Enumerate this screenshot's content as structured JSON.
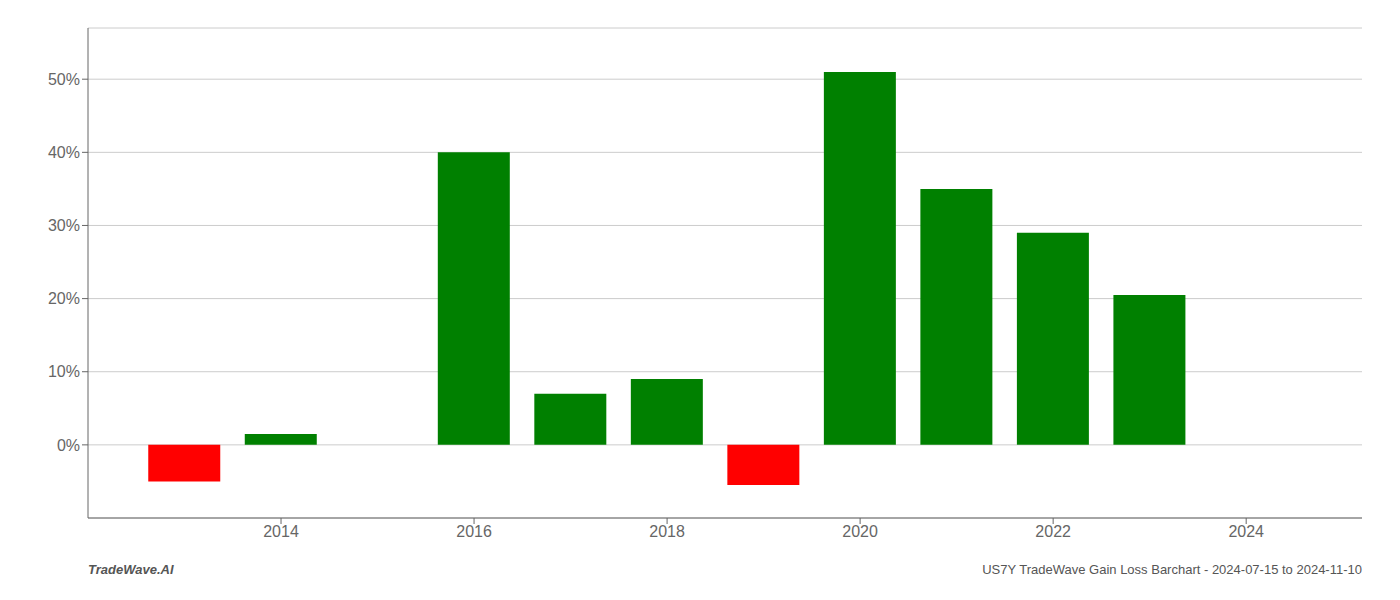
{
  "chart_data": {
    "type": "bar",
    "x": [
      2013,
      2014,
      2016,
      2017,
      2018,
      2019,
      2020,
      2021,
      2022,
      2023
    ],
    "values": [
      -5.0,
      1.5,
      40.0,
      7.0,
      9.0,
      -5.5,
      51.0,
      35.0,
      29.0,
      20.5
    ],
    "colors": [
      "#ff0000",
      "#008000",
      "#008000",
      "#008000",
      "#008000",
      "#ff0000",
      "#008000",
      "#008000",
      "#008000",
      "#008000"
    ],
    "xlim": [
      2012.0,
      2025.2
    ],
    "xticks": [
      2014,
      2016,
      2018,
      2020,
      2022,
      2024
    ],
    "ylim": [
      -10,
      57
    ],
    "yticks": [
      {
        "value": 0,
        "label": "0%"
      },
      {
        "value": 10,
        "label": "10%"
      },
      {
        "value": 20,
        "label": "20%"
      },
      {
        "value": 30,
        "label": "30%"
      },
      {
        "value": 40,
        "label": "40%"
      },
      {
        "value": 50,
        "label": "50%"
      }
    ],
    "grid": "y",
    "annotations": [
      "TradeWave.AI",
      "US7Y TradeWave Gain Loss Barchart - 2024-07-15 to 2024-11-10"
    ]
  }
}
